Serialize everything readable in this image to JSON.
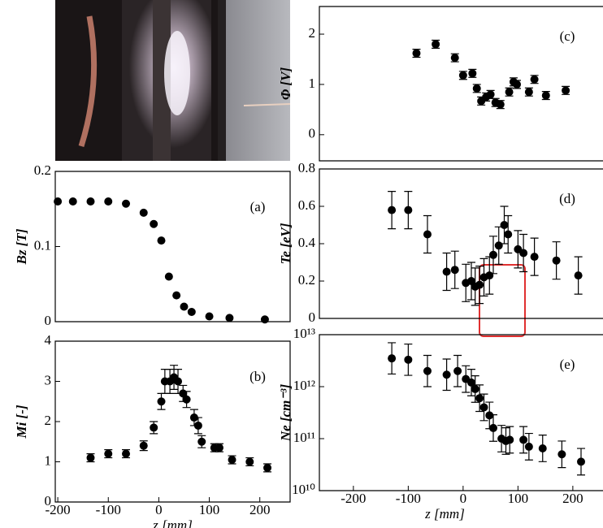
{
  "chart_data": [
    {
      "type": "scatter",
      "ylabel": "Bz [T]",
      "panel_label": "(a)",
      "color": "#000",
      "x": [
        -200,
        -170,
        -135,
        -100,
        -65,
        -30,
        -10,
        5,
        20,
        35,
        50,
        65,
        100,
        140,
        210
      ],
      "values": [
        0.16,
        0.16,
        0.16,
        0.16,
        0.157,
        0.145,
        0.13,
        0.108,
        0.06,
        0.035,
        0.02,
        0.013,
        0.007,
        0.005,
        0.003
      ],
      "xlim": [
        -205,
        260
      ],
      "ylim": [
        0,
        0.2
      ],
      "yticks": [
        0,
        0.1,
        0.2
      ]
    },
    {
      "type": "scatter",
      "ylabel": "Mi [-]",
      "panel_label": "(b)",
      "color": "#000",
      "xlabel": "z [mm]",
      "x": [
        -135,
        -100,
        -65,
        -30,
        -10,
        5,
        12,
        22,
        30,
        38,
        48,
        55,
        70,
        78,
        85,
        110,
        120,
        145,
        180,
        215
      ],
      "values": [
        1.1,
        1.2,
        1.2,
        1.4,
        1.85,
        2.5,
        3.0,
        3.0,
        3.1,
        3.0,
        2.7,
        2.55,
        2.1,
        1.9,
        1.5,
        1.35,
        1.35,
        1.05,
        1.0,
        0.85
      ],
      "errors": [
        0.1,
        0.1,
        0.1,
        0.12,
        0.15,
        0.2,
        0.3,
        0.3,
        0.3,
        0.3,
        0.2,
        0.2,
        0.2,
        0.2,
        0.15,
        0.1,
        0.1,
        0.1,
        0.1,
        0.1
      ],
      "xlim": [
        -205,
        260
      ],
      "xticks": [
        -200,
        -100,
        0,
        100,
        200
      ],
      "ylim": [
        0,
        4
      ],
      "yticks": [
        0,
        1,
        2,
        3,
        4
      ]
    },
    {
      "type": "scatter",
      "ylabel": "Φ [V]",
      "panel_label": "(c)",
      "color": "#000",
      "x": [
        -85,
        -50,
        -15,
        0,
        17,
        25,
        33,
        42,
        50,
        59,
        68,
        84,
        92,
        98,
        120,
        130,
        151,
        187
      ],
      "values": [
        1.62,
        1.8,
        1.53,
        1.18,
        1.22,
        0.92,
        0.67,
        0.75,
        0.8,
        0.64,
        0.6,
        0.85,
        1.05,
        1.0,
        0.85,
        1.1,
        0.78,
        0.88
      ],
      "errors": [
        0.08,
        0.08,
        0.08,
        0.08,
        0.08,
        0.08,
        0.08,
        0.08,
        0.08,
        0.08,
        0.08,
        0.08,
        0.08,
        0.08,
        0.08,
        0.08,
        0.08,
        0.08
      ],
      "xlim": [
        -262,
        255
      ],
      "ylim": [
        -0.52,
        2.55
      ],
      "yticks": [
        0,
        1,
        2
      ]
    },
    {
      "type": "scatter",
      "ylabel": "Te [eV]",
      "panel_label": "(d)",
      "color": "#000",
      "x": [
        -130,
        -100,
        -65,
        -30,
        -15,
        5,
        15,
        22,
        30,
        38,
        48,
        55,
        65,
        75,
        82,
        100,
        110,
        130,
        170,
        210
      ],
      "values": [
        0.58,
        0.58,
        0.45,
        0.25,
        0.26,
        0.19,
        0.2,
        0.17,
        0.18,
        0.22,
        0.23,
        0.34,
        0.39,
        0.5,
        0.45,
        0.37,
        0.35,
        0.33,
        0.31,
        0.23
      ],
      "errors": [
        0.1,
        0.1,
        0.1,
        0.1,
        0.1,
        0.1,
        0.1,
        0.1,
        0.1,
        0.1,
        0.1,
        0.1,
        0.1,
        0.1,
        0.1,
        0.1,
        0.1,
        0.1,
        0.1,
        0.1
      ],
      "xlim": [
        -262,
        255
      ],
      "ylim": [
        0,
        0.8
      ],
      "yticks": [
        0,
        0.2,
        0.4,
        0.6,
        0.8
      ]
    },
    {
      "type": "scatter",
      "ylabel": "Ne [cm⁻³]",
      "panel_label": "(e)",
      "color": "#000",
      "xlabel": "z [mm]",
      "log_y": true,
      "x": [
        -130,
        -100,
        -65,
        -30,
        -10,
        5,
        15,
        22,
        30,
        38,
        48,
        55,
        70,
        78,
        85,
        110,
        120,
        145,
        180,
        215
      ],
      "values": [
        3500000000000.0,
        3300000000000.0,
        2000000000000.0,
        1700000000000.0,
        2000000000000.0,
        1400000000000.0,
        1200000000000.0,
        900000000000.0,
        600000000000.0,
        400000000000.0,
        280000000000.0,
        160000000000.0,
        100000000000.0,
        90000000000.0,
        95000000000.0,
        95000000000.0,
        70000000000.0,
        65000000000.0,
        50000000000.0,
        36000000000.0
      ],
      "error_factors": [
        2,
        2,
        2,
        2,
        2,
        1.8,
        1.8,
        1.8,
        1.8,
        1.8,
        1.8,
        1.8,
        1.8,
        1.8,
        1.8,
        1.8,
        1.8,
        1.8,
        1.8,
        1.8
      ],
      "xlim": [
        -262,
        255
      ],
      "xticks": [
        -200,
        -100,
        0,
        100,
        200
      ],
      "ylim": [
        10000000000.0,
        10000000000000.0
      ],
      "yticks": [
        {
          "value": 10000000000.0,
          "label": "10¹⁰"
        },
        {
          "value": 100000000000.0,
          "label": "10¹¹"
        },
        {
          "value": 1000000000000.0,
          "label": "10¹²"
        },
        {
          "value": 10000000000000.0,
          "label": "10¹³"
        }
      ]
    }
  ]
}
